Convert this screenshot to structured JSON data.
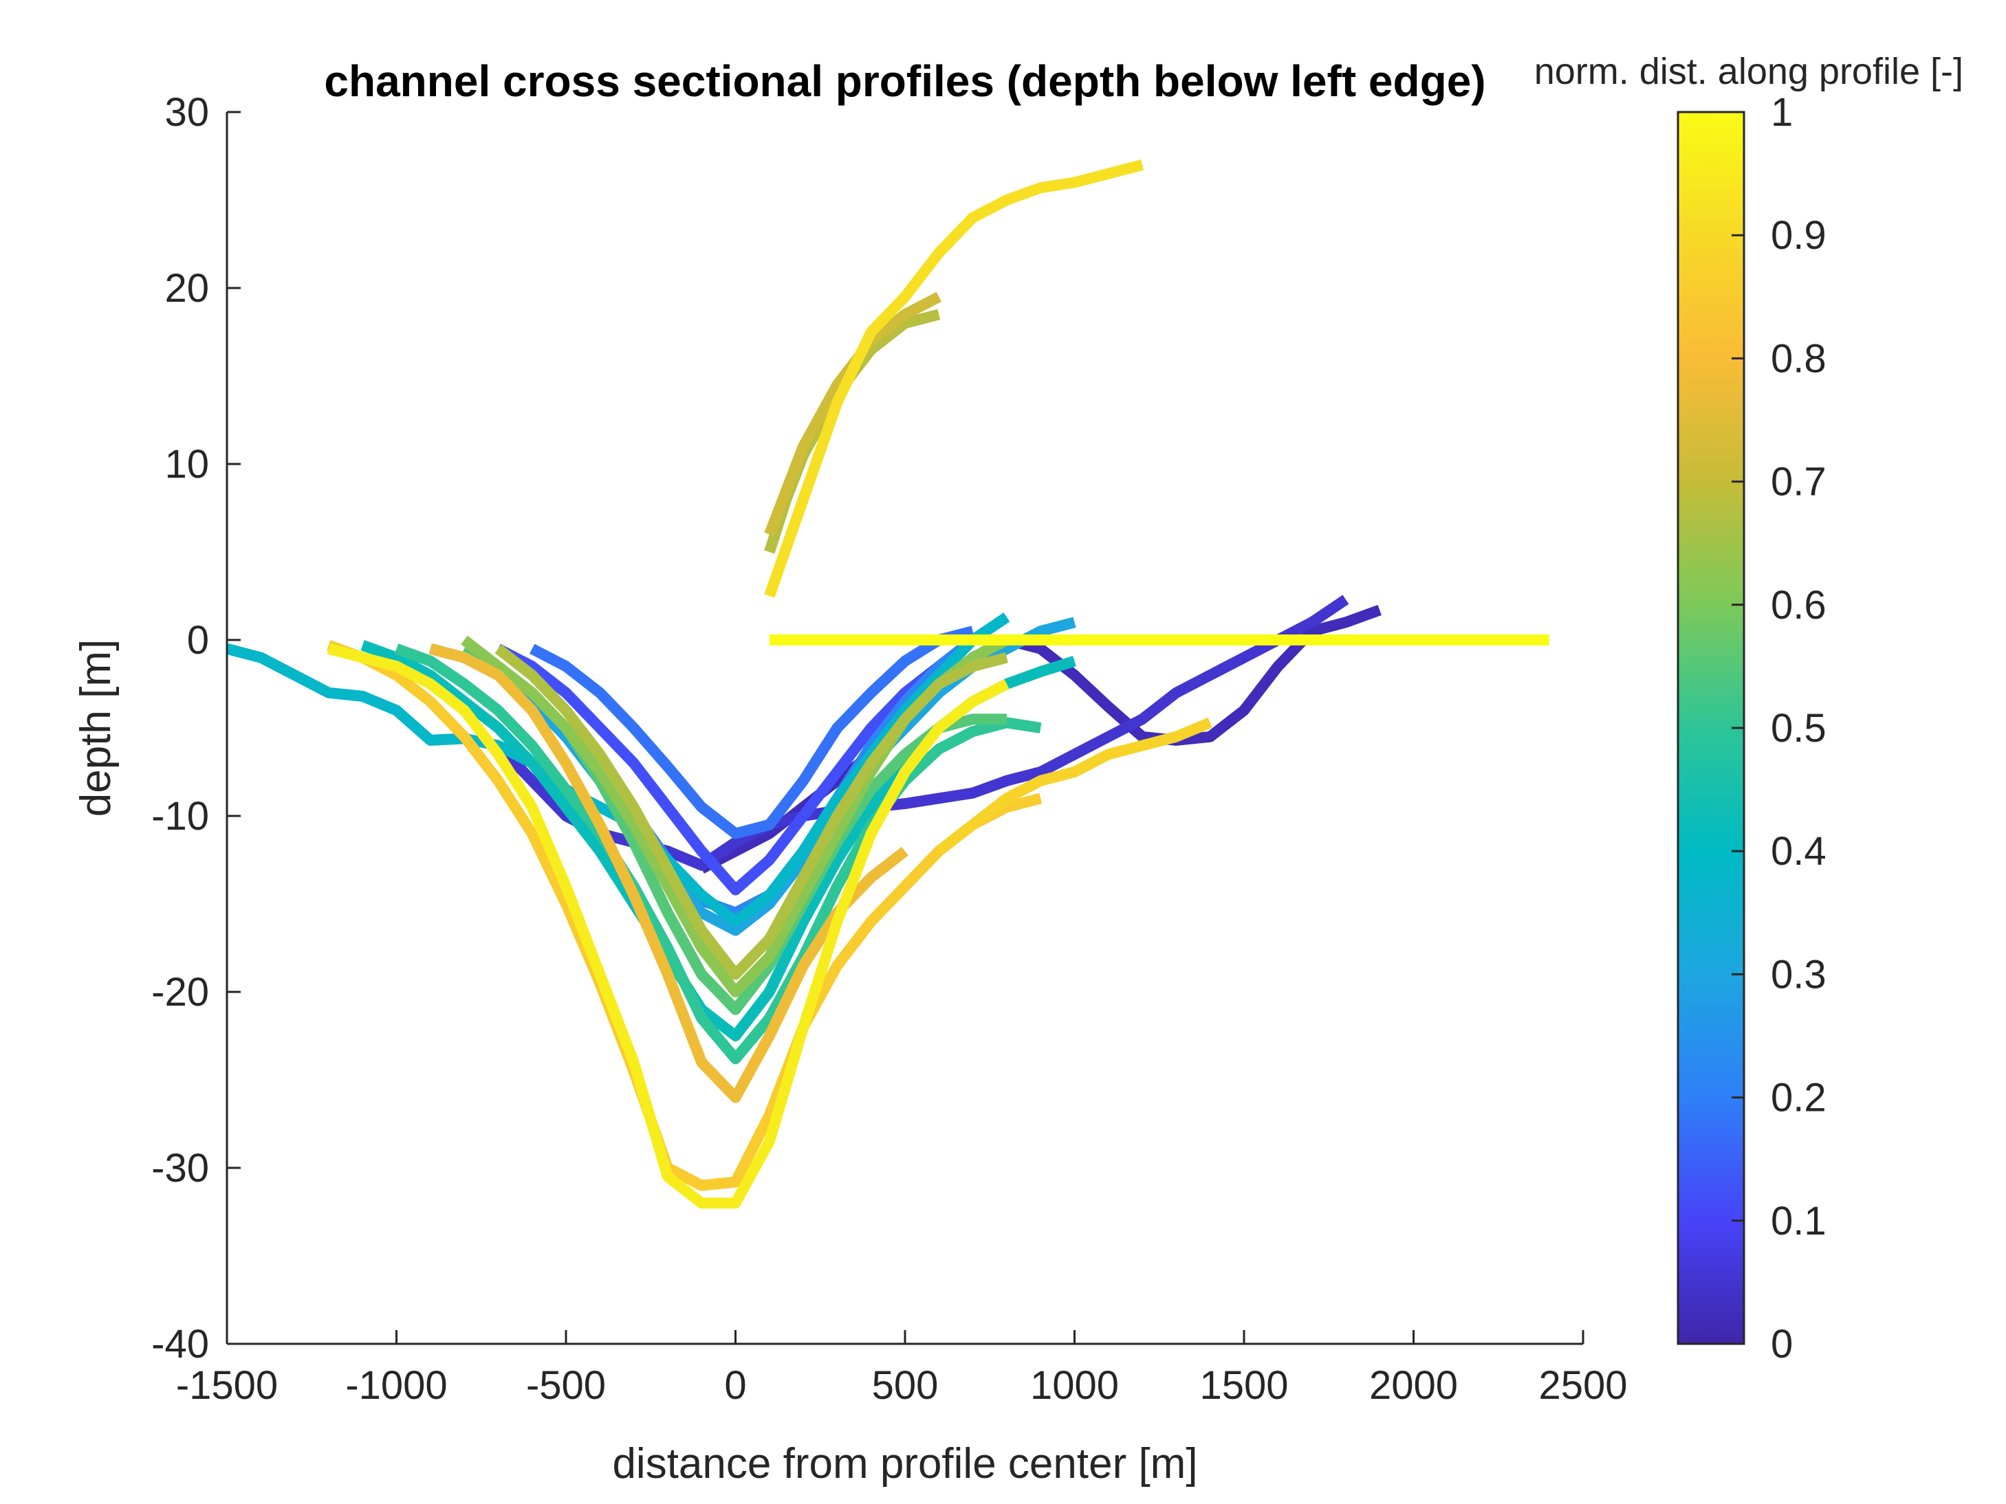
{
  "chart_data": {
    "type": "line",
    "title": "channel cross sectional profiles (depth below left edge)",
    "xlabel": "distance from profile center [m]",
    "ylabel": "depth [m]",
    "xlim": [
      -1500,
      2500
    ],
    "ylim": [
      -40,
      30
    ],
    "xticks": [
      "-1500",
      "-1000",
      "-500",
      "0",
      "500",
      "1000",
      "1500",
      "2000",
      "2500"
    ],
    "yticks": [
      "30",
      "20",
      "10",
      "0",
      "-10",
      "-20",
      "-30",
      "-40"
    ],
    "colorbar": {
      "label": "norm. dist. along profile [-]",
      "range": [
        0,
        1
      ],
      "ticks": [
        "0",
        "0.1",
        "0.2",
        "0.3",
        "0.4",
        "0.5",
        "0.6",
        "0.7",
        "0.8",
        "0.9",
        "1"
      ],
      "colormap": [
        "#3e26a8",
        "#4743f8",
        "#2f7ff8",
        "#1da6e0",
        "#00bac3",
        "#2ec597",
        "#7cc95a",
        "#c5bc38",
        "#f9bc37",
        "#f7d927",
        "#f9fb15"
      ]
    },
    "series": [
      {
        "c": 0.02,
        "x": [
          -100,
          0,
          100,
          200,
          300,
          400,
          500,
          600,
          700,
          800,
          900,
          1000,
          1100,
          1200,
          1300,
          1400,
          1500,
          1600,
          1700,
          1800,
          1900
        ],
        "y": [
          -13,
          -12,
          -11,
          -9.5,
          -8,
          -6.5,
          -5,
          -3,
          -1,
          0,
          -0.5,
          -2,
          -3.8,
          -5.5,
          -5.7,
          -5.5,
          -4,
          -1.5,
          0.5,
          1,
          1.7
        ]
      },
      {
        "c": 0.05,
        "x": [
          -700,
          -600,
          -500,
          -400,
          -300,
          -200,
          -100,
          0,
          100,
          200,
          300,
          400,
          500,
          600,
          700,
          800,
          900,
          1000,
          1100,
          1200,
          1300,
          1400,
          1500,
          1600,
          1700,
          1800
        ],
        "y": [
          -6,
          -8,
          -10,
          -11,
          -11.5,
          -12,
          -12.8,
          -11.5,
          -10.5,
          -10,
          -9.7,
          -9.5,
          -9.3,
          -9,
          -8.7,
          -8,
          -7.5,
          -6.5,
          -5.5,
          -4.5,
          -3,
          -2,
          -1,
          0,
          1,
          2.3
        ]
      },
      {
        "c": 0.12,
        "x": [
          -700,
          -600,
          -500,
          -400,
          -300,
          -200,
          -100,
          0,
          100,
          200,
          300,
          400,
          500,
          600,
          700
        ],
        "y": [
          -0.5,
          -1.5,
          -3,
          -5,
          -7,
          -9.5,
          -12,
          -14.2,
          -12.5,
          -10,
          -7.5,
          -5,
          -3,
          -1.5,
          0
        ]
      },
      {
        "c": 0.18,
        "x": [
          -600,
          -500,
          -400,
          -300,
          -200,
          -100,
          0,
          100,
          200,
          300,
          400,
          500,
          600,
          700
        ],
        "y": [
          -0.5,
          -1.5,
          -3,
          -5,
          -7.2,
          -9.5,
          -11,
          -10.5,
          -8,
          -5,
          -3,
          -1.2,
          0,
          0.5
        ]
      },
      {
        "c": 0.22,
        "x": [
          -900,
          -800,
          -700,
          -600,
          -500,
          -400,
          -300,
          -200,
          -100,
          0,
          100,
          200,
          300,
          400,
          500,
          600,
          700
        ],
        "y": [
          -0.5,
          -1,
          -2,
          -3.5,
          -5.5,
          -7.5,
          -9.8,
          -12.5,
          -14.8,
          -15.5,
          -14.5,
          -12,
          -9,
          -6,
          -3.5,
          -1.5,
          0
        ]
      },
      {
        "c": 0.3,
        "x": [
          -800,
          -700,
          -600,
          -500,
          -400,
          -300,
          -200,
          -100,
          0,
          100,
          200,
          300,
          400,
          500,
          600,
          700,
          800,
          900,
          1000
        ],
        "y": [
          -1,
          -2,
          -3.5,
          -5.5,
          -8,
          -10.5,
          -13,
          -15.5,
          -16.5,
          -15,
          -12.5,
          -9.5,
          -7,
          -5,
          -3,
          -1.5,
          -0.5,
          0.5,
          1
        ]
      },
      {
        "c": 0.38,
        "x": [
          -1500,
          -1400,
          -1300,
          -1200,
          -1100,
          -1000,
          -900,
          -800,
          -700,
          -600,
          -500,
          -400,
          -300,
          -200,
          -100,
          0,
          100,
          200,
          300,
          400,
          500,
          600,
          700,
          800
        ],
        "y": [
          -0.5,
          -1,
          -2,
          -3,
          -3.2,
          -4,
          -5.7,
          -5.6,
          -6,
          -7,
          -8.5,
          -9.5,
          -10.5,
          -12.5,
          -14.5,
          -16,
          -14.5,
          -12,
          -9,
          -6.5,
          -4,
          -2,
          0,
          1.3
        ]
      },
      {
        "c": 0.42,
        "x": [
          -1100,
          -1000,
          -900,
          -800,
          -700,
          -600,
          -500,
          -400,
          -300,
          -200,
          -100,
          0,
          100,
          200,
          300,
          400,
          500,
          600,
          700,
          800,
          900,
          1000
        ],
        "y": [
          -0.3,
          -1,
          -2,
          -3.5,
          -5,
          -7,
          -9.5,
          -12,
          -15,
          -18,
          -21,
          -22.5,
          -20,
          -16,
          -12.5,
          -9.5,
          -7,
          -5,
          -3.5,
          -2.5,
          -1.8,
          -1.2
        ]
      },
      {
        "c": 0.5,
        "x": [
          -1000,
          -900,
          -800,
          -700,
          -600,
          -500,
          -400,
          -300,
          -200,
          -100,
          0,
          100,
          200,
          300,
          400,
          500,
          600,
          700,
          800,
          900
        ],
        "y": [
          -0.5,
          -1.2,
          -2.5,
          -4,
          -6,
          -8.5,
          -11,
          -14,
          -17.5,
          -21.5,
          -23.8,
          -21.5,
          -18,
          -14,
          -10.5,
          -8,
          -6.2,
          -5.2,
          -4.7,
          -5
        ]
      },
      {
        "c": 0.55,
        "x": [
          -800,
          -700,
          -600,
          -500,
          -400,
          -300,
          -200,
          -100,
          0,
          100,
          200,
          300,
          400,
          500,
          600,
          700,
          800
        ],
        "y": [
          -0.5,
          -1.5,
          -3,
          -5,
          -8,
          -11.5,
          -15.5,
          -19,
          -21,
          -18.5,
          -15,
          -11.5,
          -8.5,
          -6.5,
          -5,
          -4.5,
          -4.5
        ]
      },
      {
        "c": 0.62,
        "x": [
          -800,
          -700,
          -600,
          -500,
          -400,
          -300,
          -200,
          -100,
          0,
          100,
          200,
          300,
          400,
          500,
          600,
          700,
          800
        ],
        "y": [
          0,
          -1.5,
          -3,
          -5,
          -7.5,
          -10.5,
          -14,
          -17.5,
          -20,
          -18,
          -14.5,
          -11,
          -7.5,
          -4.5,
          -2.5,
          -1,
          0
        ]
      },
      {
        "c": 0.67,
        "x": [
          -700,
          -600,
          -500,
          -400,
          -300,
          -200,
          -100,
          0,
          100,
          200,
          300,
          400,
          500,
          600,
          700,
          800
        ],
        "y": [
          -0.5,
          -2,
          -4,
          -6.5,
          -9.5,
          -13,
          -16.5,
          -19,
          -17,
          -13.5,
          -10,
          -7,
          -4.5,
          -2.5,
          -1.5,
          -1
        ]
      },
      {
        "c": 0.68,
        "x": [
          100,
          150,
          200,
          300,
          400,
          500,
          600
        ],
        "y": [
          5,
          8,
          10.5,
          14,
          16.5,
          18,
          18.5
        ]
      },
      {
        "c": 0.72,
        "x": [
          100,
          150,
          200,
          300,
          400,
          500,
          600
        ],
        "y": [
          6,
          8.5,
          11,
          14.5,
          17,
          18.5,
          19.5
        ]
      },
      {
        "c": 0.78,
        "x": [
          -900,
          -800,
          -700,
          -600,
          -500,
          -400,
          -300,
          -200,
          -100,
          0,
          100,
          200,
          300,
          400,
          500
        ],
        "y": [
          -0.5,
          -1,
          -2,
          -4,
          -7,
          -10.5,
          -14.5,
          -19,
          -24,
          -26,
          -22.5,
          -18.5,
          -15.5,
          -13.5,
          -12
        ]
      },
      {
        "c": 0.85,
        "x": [
          -1200,
          -1100,
          -1000,
          -900,
          -800,
          -700,
          -600,
          -500,
          -400,
          -300,
          -200,
          -100,
          0,
          100,
          200,
          300,
          400,
          500,
          600,
          700,
          800,
          900
        ],
        "y": [
          -0.3,
          -1,
          -2,
          -3.5,
          -5.5,
          -8,
          -11,
          -15,
          -19.5,
          -24.5,
          -30,
          -31,
          -30.8,
          -27,
          -22,
          -18.5,
          -16,
          -14,
          -12,
          -10.5,
          -9.5,
          -9
        ]
      },
      {
        "c": 0.88,
        "x": [
          600,
          700,
          800,
          900,
          1000,
          1100,
          1200,
          1300,
          1400
        ],
        "y": [
          -12,
          -10.5,
          -9,
          -8,
          -7.5,
          -6.5,
          -6,
          -5.5,
          -4.7
        ]
      },
      {
        "c": 0.92,
        "x": [
          100,
          200,
          300,
          400,
          500,
          600,
          700,
          800,
          900,
          1000,
          1100,
          1200
        ],
        "y": [
          2.5,
          8,
          13.5,
          17.5,
          19.5,
          22,
          24,
          25,
          25.7,
          26,
          26.5,
          27
        ]
      },
      {
        "c": 0.96,
        "x": [
          -1200,
          -1100,
          -1000,
          -900,
          -800,
          -700,
          -600,
          -500,
          -400,
          -300,
          -200,
          -100,
          0,
          100,
          200,
          300,
          400,
          500,
          600,
          700,
          800
        ],
        "y": [
          -0.5,
          -1,
          -1.5,
          -2.5,
          -4,
          -6.5,
          -9.5,
          -14,
          -19,
          -24,
          -30.5,
          -32,
          -32,
          -28.5,
          -22,
          -16,
          -11,
          -7.5,
          -5,
          -3.5,
          -2.5
        ]
      },
      {
        "c": 1.0,
        "x": [
          100,
          2400
        ],
        "y": [
          0,
          0
        ]
      }
    ]
  }
}
